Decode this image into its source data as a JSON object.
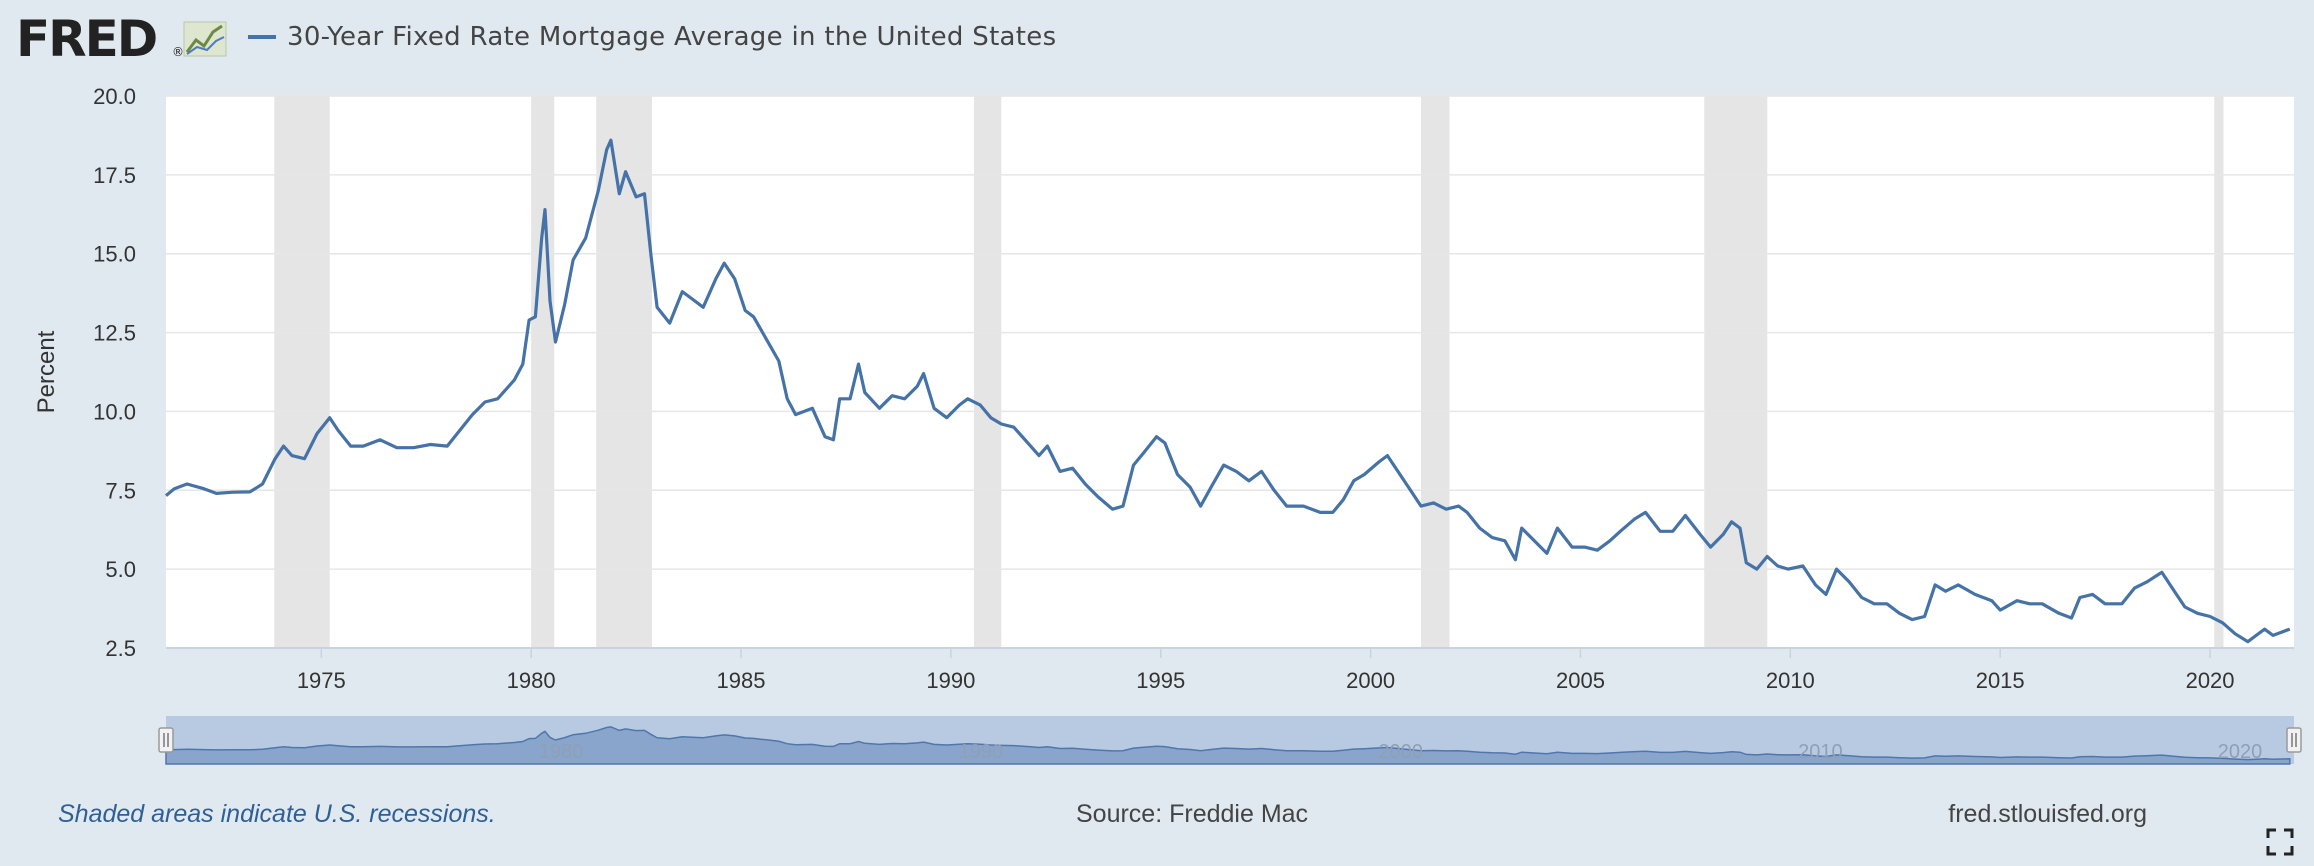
{
  "header": {
    "logo_text": "FRED",
    "logo_trademark": "®",
    "series_title": "30-Year Fixed Rate Mortgage Average in the United States"
  },
  "footer": {
    "recession_note": "Shaded areas indicate U.S. recessions.",
    "source": "Source: Freddie Mac",
    "site": "fred.stlouisfed.org"
  },
  "icons": {
    "logo": "fred-line-chart-icon",
    "fullscreen": "fullscreen-expand-icon"
  },
  "colors": {
    "page_bg": "#e1e9f0",
    "series_line": "#4572a7",
    "recession_shade": "#e5e5e5",
    "gridline": "#e6e6e6",
    "navigator_bg": "#b8c9e2",
    "navigator_fill": "#8aa5cb",
    "footer_note": "#2e5f95"
  },
  "chart_data": {
    "type": "line",
    "title": "30-Year Fixed Rate Mortgage Average in the United States",
    "xlabel": "",
    "ylabel": "Percent",
    "ylim": [
      2.5,
      20.0
    ],
    "xlim": [
      1971.3,
      2022.0
    ],
    "y_ticks": [
      "2.5",
      "5.0",
      "7.5",
      "10.0",
      "12.5",
      "15.0",
      "17.5",
      "20.0"
    ],
    "x_ticks": [
      "1975",
      "1980",
      "1985",
      "1990",
      "1995",
      "2000",
      "2005",
      "2010",
      "2015",
      "2020"
    ],
    "navigator_ticks": [
      "1980",
      "1990",
      "2000",
      "2010",
      "2020"
    ],
    "grid": true,
    "legend": "top-left",
    "source": "Freddie Mac",
    "recessions": [
      [
        1973.88,
        1975.2
      ],
      [
        1980.0,
        1980.55
      ],
      [
        1981.55,
        1982.88
      ],
      [
        1990.55,
        1991.2
      ],
      [
        2001.2,
        2001.88
      ],
      [
        2007.95,
        2009.45
      ],
      [
        2020.1,
        2020.32
      ]
    ],
    "series": [
      {
        "name": "30-Year Fixed Rate Mortgage Average in the United States",
        "color": "#4572a7",
        "points": [
          [
            1971.3,
            7.33
          ],
          [
            1971.5,
            7.55
          ],
          [
            1971.8,
            7.7
          ],
          [
            1972.2,
            7.55
          ],
          [
            1972.5,
            7.4
          ],
          [
            1972.9,
            7.44
          ],
          [
            1973.3,
            7.45
          ],
          [
            1973.6,
            7.7
          ],
          [
            1973.9,
            8.5
          ],
          [
            1974.1,
            8.9
          ],
          [
            1974.3,
            8.6
          ],
          [
            1974.6,
            8.5
          ],
          [
            1974.9,
            9.3
          ],
          [
            1975.2,
            9.8
          ],
          [
            1975.4,
            9.4
          ],
          [
            1975.7,
            8.9
          ],
          [
            1976.0,
            8.9
          ],
          [
            1976.4,
            9.1
          ],
          [
            1976.8,
            8.85
          ],
          [
            1977.2,
            8.85
          ],
          [
            1977.6,
            8.95
          ],
          [
            1978.0,
            8.9
          ],
          [
            1978.3,
            9.4
          ],
          [
            1978.6,
            9.9
          ],
          [
            1978.9,
            10.3
          ],
          [
            1979.2,
            10.4
          ],
          [
            1979.6,
            11.0
          ],
          [
            1979.8,
            11.5
          ],
          [
            1979.95,
            12.9
          ],
          [
            1980.1,
            13.0
          ],
          [
            1980.25,
            15.5
          ],
          [
            1980.33,
            16.4
          ],
          [
            1980.45,
            13.5
          ],
          [
            1980.58,
            12.2
          ],
          [
            1980.8,
            13.4
          ],
          [
            1981.0,
            14.8
          ],
          [
            1981.3,
            15.5
          ],
          [
            1981.6,
            17.0
          ],
          [
            1981.8,
            18.3
          ],
          [
            1981.9,
            18.6
          ],
          [
            1982.1,
            16.9
          ],
          [
            1982.25,
            17.6
          ],
          [
            1982.5,
            16.8
          ],
          [
            1982.7,
            16.9
          ],
          [
            1982.85,
            15.0
          ],
          [
            1983.0,
            13.3
          ],
          [
            1983.3,
            12.8
          ],
          [
            1983.6,
            13.8
          ],
          [
            1983.9,
            13.5
          ],
          [
            1984.1,
            13.3
          ],
          [
            1984.4,
            14.2
          ],
          [
            1984.6,
            14.7
          ],
          [
            1984.85,
            14.2
          ],
          [
            1985.1,
            13.2
          ],
          [
            1985.3,
            13.0
          ],
          [
            1985.6,
            12.3
          ],
          [
            1985.9,
            11.6
          ],
          [
            1986.1,
            10.4
          ],
          [
            1986.3,
            9.9
          ],
          [
            1986.7,
            10.1
          ],
          [
            1987.0,
            9.2
          ],
          [
            1987.2,
            9.1
          ],
          [
            1987.35,
            10.4
          ],
          [
            1987.6,
            10.4
          ],
          [
            1987.8,
            11.5
          ],
          [
            1987.95,
            10.6
          ],
          [
            1988.3,
            10.1
          ],
          [
            1988.6,
            10.5
          ],
          [
            1988.9,
            10.4
          ],
          [
            1989.2,
            10.8
          ],
          [
            1989.35,
            11.2
          ],
          [
            1989.6,
            10.1
          ],
          [
            1989.9,
            9.8
          ],
          [
            1990.2,
            10.2
          ],
          [
            1990.4,
            10.4
          ],
          [
            1990.7,
            10.2
          ],
          [
            1990.95,
            9.8
          ],
          [
            1991.2,
            9.6
          ],
          [
            1991.5,
            9.5
          ],
          [
            1991.9,
            8.9
          ],
          [
            1992.1,
            8.6
          ],
          [
            1992.3,
            8.9
          ],
          [
            1992.6,
            8.1
          ],
          [
            1992.9,
            8.2
          ],
          [
            1993.2,
            7.7
          ],
          [
            1993.5,
            7.3
          ],
          [
            1993.85,
            6.9
          ],
          [
            1994.1,
            7.0
          ],
          [
            1994.35,
            8.3
          ],
          [
            1994.6,
            8.7
          ],
          [
            1994.9,
            9.2
          ],
          [
            1995.1,
            9.0
          ],
          [
            1995.4,
            8.0
          ],
          [
            1995.7,
            7.6
          ],
          [
            1995.95,
            7.0
          ],
          [
            1996.2,
            7.6
          ],
          [
            1996.5,
            8.3
          ],
          [
            1996.8,
            8.1
          ],
          [
            1997.1,
            7.8
          ],
          [
            1997.4,
            8.1
          ],
          [
            1997.7,
            7.5
          ],
          [
            1998.0,
            7.0
          ],
          [
            1998.4,
            7.0
          ],
          [
            1998.8,
            6.8
          ],
          [
            1999.1,
            6.8
          ],
          [
            1999.35,
            7.2
          ],
          [
            1999.6,
            7.8
          ],
          [
            1999.85,
            8.0
          ],
          [
            2000.2,
            8.4
          ],
          [
            2000.4,
            8.6
          ],
          [
            2000.7,
            8.0
          ],
          [
            2000.95,
            7.5
          ],
          [
            2001.2,
            7.0
          ],
          [
            2001.5,
            7.1
          ],
          [
            2001.8,
            6.9
          ],
          [
            2002.1,
            7.0
          ],
          [
            2002.3,
            6.8
          ],
          [
            2002.6,
            6.3
          ],
          [
            2002.9,
            6.0
          ],
          [
            2003.2,
            5.9
          ],
          [
            2003.45,
            5.3
          ],
          [
            2003.6,
            6.3
          ],
          [
            2003.9,
            5.9
          ],
          [
            2004.2,
            5.5
          ],
          [
            2004.45,
            6.3
          ],
          [
            2004.8,
            5.7
          ],
          [
            2005.1,
            5.7
          ],
          [
            2005.4,
            5.6
          ],
          [
            2005.7,
            5.9
          ],
          [
            2005.95,
            6.2
          ],
          [
            2006.3,
            6.6
          ],
          [
            2006.55,
            6.8
          ],
          [
            2006.9,
            6.2
          ],
          [
            2007.2,
            6.2
          ],
          [
            2007.5,
            6.7
          ],
          [
            2007.85,
            6.1
          ],
          [
            2008.1,
            5.7
          ],
          [
            2008.4,
            6.1
          ],
          [
            2008.6,
            6.5
          ],
          [
            2008.8,
            6.3
          ],
          [
            2008.95,
            5.2
          ],
          [
            2009.2,
            5.0
          ],
          [
            2009.45,
            5.4
          ],
          [
            2009.7,
            5.1
          ],
          [
            2009.95,
            5.0
          ],
          [
            2010.3,
            5.1
          ],
          [
            2010.6,
            4.5
          ],
          [
            2010.85,
            4.2
          ],
          [
            2011.1,
            5.0
          ],
          [
            2011.4,
            4.6
          ],
          [
            2011.7,
            4.1
          ],
          [
            2012.0,
            3.9
          ],
          [
            2012.3,
            3.9
          ],
          [
            2012.6,
            3.6
          ],
          [
            2012.9,
            3.4
          ],
          [
            2013.2,
            3.5
          ],
          [
            2013.45,
            4.5
          ],
          [
            2013.7,
            4.3
          ],
          [
            2014.0,
            4.5
          ],
          [
            2014.4,
            4.2
          ],
          [
            2014.8,
            4.0
          ],
          [
            2015.0,
            3.7
          ],
          [
            2015.4,
            4.0
          ],
          [
            2015.7,
            3.9
          ],
          [
            2016.0,
            3.9
          ],
          [
            2016.4,
            3.6
          ],
          [
            2016.7,
            3.45
          ],
          [
            2016.9,
            4.1
          ],
          [
            2017.2,
            4.2
          ],
          [
            2017.5,
            3.9
          ],
          [
            2017.9,
            3.9
          ],
          [
            2018.2,
            4.4
          ],
          [
            2018.5,
            4.6
          ],
          [
            2018.85,
            4.9
          ],
          [
            2019.1,
            4.4
          ],
          [
            2019.4,
            3.8
          ],
          [
            2019.7,
            3.6
          ],
          [
            2020.0,
            3.5
          ],
          [
            2020.3,
            3.3
          ],
          [
            2020.6,
            2.95
          ],
          [
            2020.9,
            2.7
          ],
          [
            2021.1,
            2.9
          ],
          [
            2021.3,
            3.1
          ],
          [
            2021.5,
            2.9
          ],
          [
            2021.7,
            3.0
          ],
          [
            2021.9,
            3.1
          ]
        ]
      }
    ]
  }
}
